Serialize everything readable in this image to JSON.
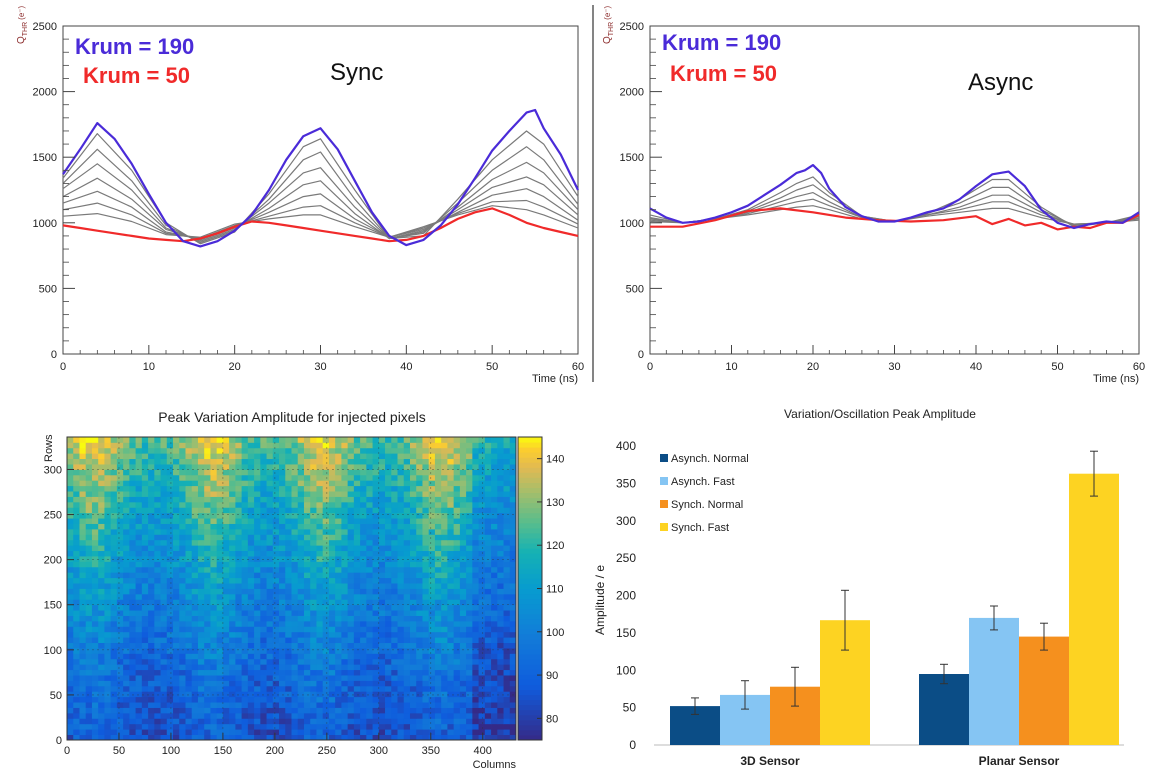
{
  "chart_data": [
    {
      "type": "line",
      "ylabel": "Q_THR (e⁻)",
      "ylabel_main": "Q",
      "ylabel_sub": "THR",
      "ylabel_sup": "(e⁻)",
      "xlabel": "Time (ns)",
      "xlim": [
        0,
        60
      ],
      "ylim": [
        0,
        2500
      ],
      "xticks": [
        "0",
        "10",
        "20",
        "30",
        "40",
        "50",
        "60"
      ],
      "yticks": [
        "0",
        "500",
        "1000",
        "1500",
        "2000",
        "2500"
      ],
      "legend": [
        {
          "label": "Krum = 190",
          "color": "#4a2bd8"
        },
        {
          "label": "Krum = 50",
          "color": "#f02a2a"
        }
      ],
      "annotation": "Sync",
      "series": [
        {
          "name": "Krum = 190",
          "color": "#4a2bd8",
          "x": [
            0,
            2,
            4,
            6,
            8,
            10,
            12,
            14,
            16,
            18,
            20,
            22,
            24,
            26,
            28,
            30,
            32,
            34,
            36,
            38,
            40,
            42,
            44,
            46,
            48,
            50,
            52,
            54,
            55,
            56,
            58,
            60
          ],
          "y": [
            1370,
            1560,
            1760,
            1640,
            1450,
            1220,
            1000,
            860,
            820,
            860,
            940,
            1060,
            1250,
            1480,
            1660,
            1720,
            1560,
            1320,
            1080,
            900,
            830,
            870,
            980,
            1140,
            1340,
            1550,
            1700,
            1840,
            1860,
            1720,
            1520,
            1250
          ]
        },
        {
          "name": "Krum = 50",
          "color": "#f02a2a",
          "x": [
            0,
            2,
            4,
            6,
            8,
            10,
            12,
            14,
            16,
            18,
            20,
            22,
            24,
            26,
            28,
            30,
            32,
            34,
            36,
            38,
            40,
            42,
            44,
            46,
            48,
            50,
            52,
            54,
            56,
            58,
            60
          ],
          "y": [
            980,
            960,
            940,
            920,
            900,
            880,
            870,
            860,
            880,
            920,
            970,
            1010,
            1000,
            980,
            960,
            940,
            920,
            900,
            880,
            860,
            870,
            900,
            960,
            1030,
            1080,
            1110,
            1060,
            1000,
            960,
            930,
            900
          ]
        },
        {
          "name": "",
          "color": "#7a7a7a",
          "x": [
            0,
            4,
            8,
            12,
            16,
            20,
            24,
            28,
            30,
            34,
            38,
            42,
            46,
            50,
            54,
            56,
            60
          ],
          "y": [
            1340,
            1680,
            1400,
            1000,
            840,
            930,
            1220,
            1580,
            1640,
            1250,
            880,
            900,
            1180,
            1480,
            1700,
            1600,
            1200
          ]
        },
        {
          "name": "",
          "color": "#7a7a7a",
          "x": [
            0,
            4,
            8,
            12,
            16,
            20,
            24,
            28,
            30,
            34,
            38,
            42,
            46,
            50,
            54,
            56,
            60
          ],
          "y": [
            1300,
            1560,
            1320,
            980,
            850,
            940,
            1180,
            1480,
            1540,
            1180,
            880,
            920,
            1150,
            1400,
            1580,
            1480,
            1140
          ]
        },
        {
          "name": "",
          "color": "#7a7a7a",
          "x": [
            0,
            4,
            8,
            12,
            16,
            20,
            24,
            28,
            30,
            34,
            38,
            42,
            46,
            50,
            54,
            56,
            60
          ],
          "y": [
            1260,
            1450,
            1250,
            960,
            860,
            950,
            1150,
            1380,
            1420,
            1120,
            880,
            930,
            1120,
            1330,
            1460,
            1380,
            1100
          ]
        },
        {
          "name": "",
          "color": "#7a7a7a",
          "x": [
            0,
            4,
            8,
            12,
            16,
            20,
            24,
            28,
            30,
            34,
            38,
            42,
            46,
            50,
            54,
            56,
            60
          ],
          "y": [
            1200,
            1340,
            1180,
            950,
            870,
            960,
            1110,
            1290,
            1320,
            1070,
            880,
            940,
            1100,
            1270,
            1350,
            1290,
            1060
          ]
        },
        {
          "name": "",
          "color": "#7a7a7a",
          "x": [
            0,
            4,
            8,
            12,
            16,
            20,
            24,
            28,
            30,
            34,
            38,
            42,
            46,
            50,
            54,
            56,
            60
          ],
          "y": [
            1150,
            1240,
            1120,
            930,
            880,
            970,
            1080,
            1200,
            1220,
            1030,
            890,
            950,
            1080,
            1210,
            1260,
            1200,
            1020
          ]
        },
        {
          "name": "",
          "color": "#7a7a7a",
          "x": [
            0,
            4,
            8,
            12,
            16,
            20,
            24,
            28,
            30,
            34,
            38,
            42,
            46,
            50,
            54,
            56,
            60
          ],
          "y": [
            1100,
            1150,
            1060,
            920,
            880,
            980,
            1050,
            1120,
            1130,
            1000,
            890,
            960,
            1070,
            1160,
            1170,
            1120,
            990
          ]
        },
        {
          "name": "",
          "color": "#7a7a7a",
          "x": [
            0,
            4,
            8,
            12,
            16,
            20,
            24,
            28,
            30,
            34,
            38,
            42,
            46,
            50,
            54,
            56,
            60
          ],
          "y": [
            1050,
            1070,
            1010,
            910,
            890,
            990,
            1030,
            1060,
            1060,
            970,
            890,
            970,
            1060,
            1130,
            1100,
            1060,
            960
          ]
        }
      ]
    },
    {
      "type": "line",
      "ylabel": "Q_THR (e⁻)",
      "ylabel_main": "Q",
      "ylabel_sub": "THR",
      "ylabel_sup": "(e⁻)",
      "xlabel": "Time (ns)",
      "xlim": [
        0,
        60
      ],
      "ylim": [
        0,
        2500
      ],
      "xticks": [
        "0",
        "10",
        "20",
        "30",
        "40",
        "50",
        "60"
      ],
      "yticks": [
        "0",
        "500",
        "1000",
        "1500",
        "2000",
        "2500"
      ],
      "legend": [
        {
          "label": "Krum = 190",
          "color": "#4a2bd8"
        },
        {
          "label": "Krum = 50",
          "color": "#f02a2a"
        }
      ],
      "annotation": "Async",
      "series": [
        {
          "name": "Krum = 190",
          "color": "#4a2bd8",
          "x": [
            0,
            2,
            4,
            6,
            8,
            10,
            12,
            14,
            16,
            18,
            19,
            20,
            21,
            22,
            24,
            26,
            28,
            30,
            32,
            34,
            36,
            38,
            40,
            42,
            44,
            46,
            48,
            50,
            52,
            54,
            56,
            58,
            60
          ],
          "y": [
            1110,
            1040,
            1000,
            1010,
            1040,
            1080,
            1130,
            1210,
            1290,
            1380,
            1400,
            1440,
            1380,
            1260,
            1120,
            1050,
            1010,
            1010,
            1040,
            1080,
            1110,
            1180,
            1280,
            1370,
            1390,
            1280,
            1100,
            1000,
            960,
            990,
            1010,
            1000,
            1080
          ]
        },
        {
          "name": "Krum = 50",
          "color": "#f02a2a",
          "x": [
            0,
            4,
            8,
            12,
            16,
            20,
            24,
            28,
            32,
            36,
            40,
            42,
            44,
            46,
            48,
            50,
            52,
            54,
            56,
            58,
            60
          ],
          "y": [
            970,
            970,
            1020,
            1090,
            1110,
            1080,
            1040,
            1020,
            1010,
            1020,
            1050,
            990,
            1030,
            980,
            1000,
            950,
            970,
            960,
            1000,
            1000,
            1060
          ]
        },
        {
          "name": "",
          "color": "#7a7a7a",
          "x": [
            0,
            4,
            8,
            12,
            16,
            18,
            20,
            22,
            26,
            30,
            34,
            38,
            42,
            44,
            48,
            52,
            56,
            60
          ],
          "y": [
            1060,
            1000,
            1030,
            1100,
            1230,
            1300,
            1350,
            1230,
            1050,
            1010,
            1070,
            1180,
            1330,
            1330,
            1120,
            970,
            1000,
            1060
          ]
        },
        {
          "name": "",
          "color": "#7a7a7a",
          "x": [
            0,
            4,
            8,
            12,
            16,
            18,
            20,
            22,
            26,
            30,
            34,
            38,
            42,
            44,
            48,
            52,
            56,
            60
          ],
          "y": [
            1040,
            1000,
            1030,
            1090,
            1190,
            1250,
            1290,
            1200,
            1050,
            1010,
            1070,
            1150,
            1270,
            1270,
            1100,
            980,
            1000,
            1050
          ]
        },
        {
          "name": "",
          "color": "#7a7a7a",
          "x": [
            0,
            4,
            8,
            12,
            16,
            18,
            20,
            22,
            26,
            30,
            34,
            38,
            42,
            44,
            48,
            52,
            56,
            60
          ],
          "y": [
            1030,
            1000,
            1030,
            1080,
            1160,
            1200,
            1230,
            1160,
            1040,
            1010,
            1060,
            1120,
            1210,
            1210,
            1080,
            980,
            1000,
            1040
          ]
        },
        {
          "name": "",
          "color": "#7a7a7a",
          "x": [
            0,
            4,
            8,
            12,
            16,
            18,
            20,
            22,
            26,
            30,
            34,
            38,
            42,
            44,
            48,
            52,
            56,
            60
          ],
          "y": [
            1020,
            1000,
            1030,
            1070,
            1130,
            1160,
            1180,
            1130,
            1040,
            1010,
            1060,
            1100,
            1160,
            1160,
            1060,
            990,
            1000,
            1030
          ]
        },
        {
          "name": "",
          "color": "#7a7a7a",
          "x": [
            0,
            4,
            8,
            12,
            16,
            18,
            20,
            22,
            26,
            30,
            34,
            38,
            42,
            44,
            48,
            52,
            56,
            60
          ],
          "y": [
            1010,
            1000,
            1030,
            1060,
            1100,
            1120,
            1130,
            1100,
            1030,
            1010,
            1050,
            1080,
            1110,
            1110,
            1040,
            990,
            1000,
            1020
          ]
        }
      ]
    },
    {
      "type": "heatmap",
      "title": "Peak Variation Amplitude for injected pixels",
      "xlabel": "Columns",
      "ylabel": "Rows",
      "xlim": [
        0,
        432
      ],
      "ylim": [
        0,
        336
      ],
      "xticks": [
        "0",
        "50",
        "100",
        "150",
        "200",
        "250",
        "300",
        "350",
        "400"
      ],
      "yticks": [
        "0",
        "50",
        "100",
        "150",
        "200",
        "250",
        "300"
      ],
      "zlim": [
        75,
        145
      ],
      "colorbar_ticks": [
        "80",
        "90",
        "100",
        "110",
        "120",
        "130",
        "140"
      ],
      "pattern": {
        "bands_columns": [
          25,
          140,
          245,
          360
        ],
        "high_rows": "top",
        "value_range": [
          78,
          145
        ]
      }
    },
    {
      "type": "bar",
      "title": "Variation/Oscillation Peak Amplitude",
      "ylabel": "Amplitude / e",
      "categories": [
        "3D Sensor",
        "Planar Sensor"
      ],
      "ylim": [
        0,
        400
      ],
      "yticks": [
        "0",
        "50",
        "100",
        "150",
        "200",
        "250",
        "300",
        "350",
        "400"
      ],
      "series": [
        {
          "name": "Asynch. Normal",
          "color": "#0b4d86",
          "values": [
            52,
            95
          ],
          "errors": [
            11,
            13
          ]
        },
        {
          "name": "Asynch. Fast",
          "color": "#85c5f3",
          "values": [
            67,
            170
          ],
          "errors": [
            19,
            16
          ]
        },
        {
          "name": "Synch. Normal",
          "color": "#f5901e",
          "values": [
            78,
            145
          ],
          "errors": [
            26,
            18
          ]
        },
        {
          "name": "Synch. Fast",
          "color": "#fdd322",
          "values": [
            167,
            363
          ],
          "errors": [
            40,
            30
          ]
        }
      ]
    }
  ]
}
